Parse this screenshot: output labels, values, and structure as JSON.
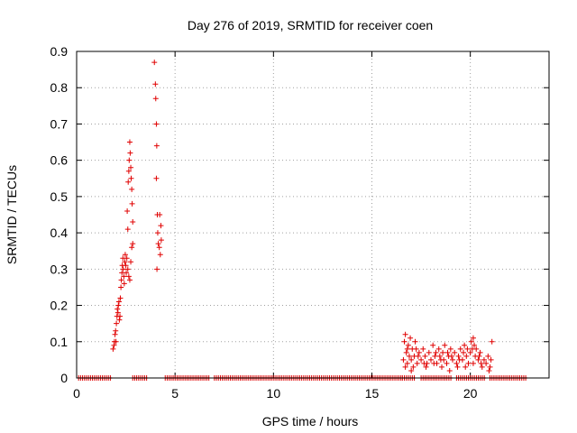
{
  "chart_data": {
    "type": "scatter",
    "title": "Day 276 of 2019, SRMTID for receiver coen",
    "xlabel": "GPS time / hours",
    "ylabel": "SRMTID / TECUs",
    "xlim": [
      0,
      24
    ],
    "ylim": [
      0,
      0.9
    ],
    "xticks": [
      "0",
      "5",
      "10",
      "15",
      "20"
    ],
    "yticks": [
      "0",
      "0.1",
      "0.2",
      "0.3",
      "0.4",
      "0.5",
      "0.6",
      "0.7",
      "0.8",
      "0.9"
    ],
    "grid": true,
    "marker": "+",
    "series_color": "#e00000",
    "zero_segments": [
      [
        0.1,
        1.8
      ],
      [
        2.85,
        3.6
      ],
      [
        4.5,
        6.75
      ],
      [
        7.0,
        16.5
      ],
      [
        16.55,
        17.2
      ],
      [
        17.5,
        19.1
      ],
      [
        19.3,
        20.8
      ],
      [
        21.0,
        22.9
      ]
    ],
    "points": [
      [
        1.85,
        0.08
      ],
      [
        1.9,
        0.09
      ],
      [
        1.92,
        0.1
      ],
      [
        1.95,
        0.12
      ],
      [
        1.98,
        0.13
      ],
      [
        2.0,
        0.1
      ],
      [
        2.02,
        0.15
      ],
      [
        2.05,
        0.17
      ],
      [
        2.07,
        0.19
      ],
      [
        2.1,
        0.18
      ],
      [
        2.12,
        0.2
      ],
      [
        2.15,
        0.21
      ],
      [
        2.17,
        0.16
      ],
      [
        2.2,
        0.17
      ],
      [
        2.22,
        0.22
      ],
      [
        2.25,
        0.25
      ],
      [
        2.27,
        0.27
      ],
      [
        2.3,
        0.29
      ],
      [
        2.32,
        0.31
      ],
      [
        2.35,
        0.33
      ],
      [
        2.37,
        0.3
      ],
      [
        2.4,
        0.28
      ],
      [
        2.42,
        0.26
      ],
      [
        2.45,
        0.32
      ],
      [
        2.47,
        0.34
      ],
      [
        2.5,
        0.31
      ],
      [
        2.52,
        0.29
      ],
      [
        2.55,
        0.33
      ],
      [
        2.57,
        0.46
      ],
      [
        2.6,
        0.41
      ],
      [
        2.62,
        0.54
      ],
      [
        2.65,
        0.57
      ],
      [
        2.67,
        0.6
      ],
      [
        2.7,
        0.65
      ],
      [
        2.72,
        0.62
      ],
      [
        2.75,
        0.58
      ],
      [
        2.77,
        0.55
      ],
      [
        2.8,
        0.52
      ],
      [
        2.82,
        0.48
      ],
      [
        2.85,
        0.43
      ],
      [
        2.6,
        0.3
      ],
      [
        2.7,
        0.27
      ],
      [
        2.8,
        0.36
      ],
      [
        2.75,
        0.32
      ],
      [
        2.65,
        0.28
      ],
      [
        2.85,
        0.37
      ],
      [
        3.95,
        0.87
      ],
      [
        4.0,
        0.81
      ],
      [
        4.02,
        0.77
      ],
      [
        4.05,
        0.7
      ],
      [
        4.07,
        0.64
      ],
      [
        4.05,
        0.55
      ],
      [
        4.1,
        0.45
      ],
      [
        4.12,
        0.4
      ],
      [
        4.15,
        0.37
      ],
      [
        4.08,
        0.3
      ],
      [
        4.2,
        0.36
      ],
      [
        4.25,
        0.34
      ],
      [
        4.3,
        0.38
      ],
      [
        4.28,
        0.42
      ],
      [
        4.22,
        0.45
      ],
      [
        16.6,
        0.05
      ],
      [
        16.65,
        0.1
      ],
      [
        16.7,
        0.12
      ],
      [
        16.75,
        0.07
      ],
      [
        16.8,
        0.04
      ],
      [
        16.85,
        0.09
      ],
      [
        16.9,
        0.06
      ],
      [
        16.95,
        0.11
      ],
      [
        17.0,
        0.05
      ],
      [
        17.05,
        0.08
      ],
      [
        17.1,
        0.03
      ],
      [
        17.15,
        0.06
      ],
      [
        17.2,
        0.1
      ],
      [
        17.3,
        0.04
      ],
      [
        17.4,
        0.07
      ],
      [
        17.5,
        0.05
      ],
      [
        17.6,
        0.08
      ],
      [
        17.7,
        0.06
      ],
      [
        17.8,
        0.04
      ],
      [
        17.9,
        0.07
      ],
      [
        18.0,
        0.05
      ],
      [
        18.1,
        0.09
      ],
      [
        18.2,
        0.06
      ],
      [
        18.3,
        0.04
      ],
      [
        18.4,
        0.08
      ],
      [
        18.5,
        0.05
      ],
      [
        18.6,
        0.07
      ],
      [
        18.7,
        0.09
      ],
      [
        18.8,
        0.04
      ],
      [
        18.9,
        0.06
      ],
      [
        19.0,
        0.08
      ],
      [
        19.1,
        0.05
      ],
      [
        19.2,
        0.07
      ],
      [
        19.3,
        0.04
      ],
      [
        19.4,
        0.06
      ],
      [
        19.5,
        0.08
      ],
      [
        19.6,
        0.05
      ],
      [
        19.7,
        0.09
      ],
      [
        19.8,
        0.06
      ],
      [
        19.9,
        0.04
      ],
      [
        20.0,
        0.07
      ],
      [
        20.05,
        0.1
      ],
      [
        20.1,
        0.08
      ],
      [
        20.15,
        0.11
      ],
      [
        20.2,
        0.09
      ],
      [
        20.25,
        0.06
      ],
      [
        20.3,
        0.08
      ],
      [
        20.4,
        0.05
      ],
      [
        20.5,
        0.07
      ],
      [
        20.6,
        0.03
      ],
      [
        20.7,
        0.05
      ],
      [
        20.8,
        0.04
      ],
      [
        20.9,
        0.06
      ],
      [
        21.0,
        0.03
      ],
      [
        21.05,
        0.05
      ],
      [
        21.1,
        0.1
      ],
      [
        16.7,
        0.03
      ],
      [
        17.0,
        0.02
      ],
      [
        17.35,
        0.06
      ],
      [
        17.75,
        0.03
      ],
      [
        18.15,
        0.04
      ],
      [
        18.55,
        0.03
      ],
      [
        18.95,
        0.02
      ],
      [
        19.35,
        0.03
      ],
      [
        19.75,
        0.03
      ],
      [
        20.15,
        0.04
      ],
      [
        20.55,
        0.04
      ],
      [
        20.95,
        0.02
      ],
      [
        18.25,
        0.07
      ],
      [
        18.65,
        0.05
      ],
      [
        19.05,
        0.06
      ],
      [
        19.45,
        0.05
      ],
      [
        19.85,
        0.08
      ],
      [
        17.25,
        0.08
      ],
      [
        17.65,
        0.04
      ],
      [
        18.45,
        0.06
      ],
      [
        18.85,
        0.07
      ],
      [
        19.65,
        0.07
      ],
      [
        20.45,
        0.06
      ],
      [
        16.8,
        0.08
      ]
    ]
  }
}
